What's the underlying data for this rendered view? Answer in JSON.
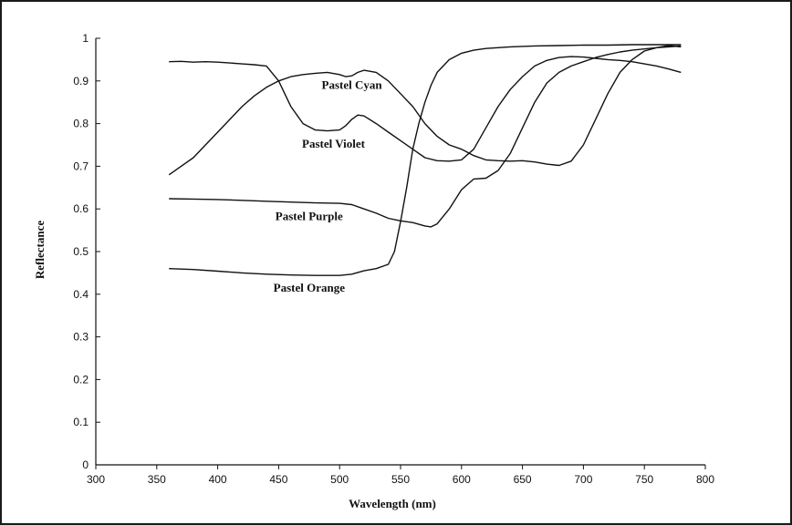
{
  "chart_data": {
    "type": "line",
    "title": "",
    "xlabel": "Wavelength (nm)",
    "ylabel": "Reflectance",
    "xlim": [
      300,
      800
    ],
    "ylim": [
      0,
      1
    ],
    "x_ticks": [
      300,
      350,
      400,
      450,
      500,
      550,
      600,
      650,
      700,
      750,
      800
    ],
    "y_ticks": [
      0,
      0.1,
      0.2,
      0.3,
      0.4,
      0.5,
      0.6,
      0.7,
      0.8,
      0.9,
      1
    ],
    "y_tick_labels": [
      "0",
      "0.1",
      "0.2",
      "0.3",
      "0.4",
      "0.5",
      "0.6",
      "0.7",
      "0.8",
      "0.9",
      "1"
    ],
    "grid": false,
    "legend": "none",
    "series": [
      {
        "name": "Pastel Cyan",
        "x": [
          360,
          370,
          380,
          390,
          400,
          410,
          420,
          430,
          440,
          450,
          460,
          470,
          480,
          490,
          500,
          505,
          510,
          515,
          520,
          530,
          540,
          550,
          560,
          570,
          580,
          590,
          600,
          610,
          620,
          630,
          640,
          650,
          660,
          670,
          680,
          690,
          700,
          710,
          720,
          730,
          740,
          750,
          760,
          770,
          780
        ],
        "y": [
          0.68,
          0.7,
          0.72,
          0.75,
          0.78,
          0.81,
          0.84,
          0.865,
          0.885,
          0.9,
          0.91,
          0.915,
          0.918,
          0.92,
          0.915,
          0.91,
          0.912,
          0.92,
          0.925,
          0.92,
          0.9,
          0.87,
          0.84,
          0.8,
          0.77,
          0.75,
          0.74,
          0.725,
          0.715,
          0.713,
          0.712,
          0.713,
          0.71,
          0.705,
          0.702,
          0.712,
          0.75,
          0.81,
          0.87,
          0.92,
          0.95,
          0.97,
          0.978,
          0.983,
          0.98
        ]
      },
      {
        "name": "Pastel Violet",
        "x": [
          360,
          370,
          380,
          390,
          400,
          410,
          420,
          430,
          440,
          450,
          460,
          470,
          480,
          490,
          500,
          505,
          510,
          515,
          520,
          530,
          540,
          550,
          560,
          570,
          580,
          590,
          600,
          610,
          620,
          630,
          640,
          650,
          660,
          670,
          680,
          690,
          700,
          710,
          720,
          730,
          740,
          750,
          760,
          770,
          780
        ],
        "y": [
          0.945,
          0.946,
          0.944,
          0.945,
          0.944,
          0.942,
          0.94,
          0.938,
          0.935,
          0.9,
          0.84,
          0.8,
          0.785,
          0.783,
          0.785,
          0.795,
          0.81,
          0.82,
          0.818,
          0.8,
          0.78,
          0.76,
          0.74,
          0.72,
          0.713,
          0.712,
          0.715,
          0.74,
          0.79,
          0.84,
          0.88,
          0.91,
          0.935,
          0.948,
          0.955,
          0.957,
          0.956,
          0.953,
          0.95,
          0.948,
          0.945,
          0.94,
          0.935,
          0.928,
          0.92
        ]
      },
      {
        "name": "Pastel Purple",
        "x": [
          360,
          380,
          400,
          420,
          440,
          460,
          480,
          500,
          510,
          520,
          530,
          540,
          550,
          560,
          570,
          575,
          580,
          590,
          600,
          610,
          620,
          630,
          640,
          650,
          660,
          670,
          680,
          690,
          700,
          710,
          720,
          730,
          740,
          750,
          760,
          770,
          780
        ],
        "y": [
          0.624,
          0.623,
          0.622,
          0.62,
          0.618,
          0.616,
          0.614,
          0.613,
          0.61,
          0.6,
          0.59,
          0.578,
          0.572,
          0.568,
          0.56,
          0.558,
          0.565,
          0.6,
          0.645,
          0.67,
          0.672,
          0.69,
          0.73,
          0.79,
          0.85,
          0.895,
          0.92,
          0.935,
          0.945,
          0.955,
          0.962,
          0.968,
          0.972,
          0.975,
          0.978,
          0.98,
          0.982
        ]
      },
      {
        "name": "Pastel Orange",
        "x": [
          360,
          380,
          400,
          420,
          440,
          460,
          480,
          500,
          510,
          520,
          530,
          540,
          545,
          550,
          555,
          560,
          565,
          570,
          575,
          580,
          590,
          600,
          610,
          620,
          640,
          660,
          680,
          700,
          720,
          740,
          760,
          780
        ],
        "y": [
          0.46,
          0.458,
          0.454,
          0.45,
          0.447,
          0.445,
          0.444,
          0.444,
          0.447,
          0.455,
          0.46,
          0.47,
          0.5,
          0.57,
          0.65,
          0.74,
          0.8,
          0.85,
          0.89,
          0.92,
          0.95,
          0.965,
          0.972,
          0.976,
          0.98,
          0.982,
          0.983,
          0.984,
          0.984,
          0.985,
          0.985,
          0.985
        ]
      }
    ],
    "annotations": [
      {
        "text": "Pastel Cyan",
        "x": 510,
        "y": 0.89
      },
      {
        "text": "Pastel Violet",
        "x": 495,
        "y": 0.752
      },
      {
        "text": "Pastel Purple",
        "x": 475,
        "y": 0.582
      },
      {
        "text": "Pastel Orange",
        "x": 475,
        "y": 0.415
      }
    ]
  }
}
